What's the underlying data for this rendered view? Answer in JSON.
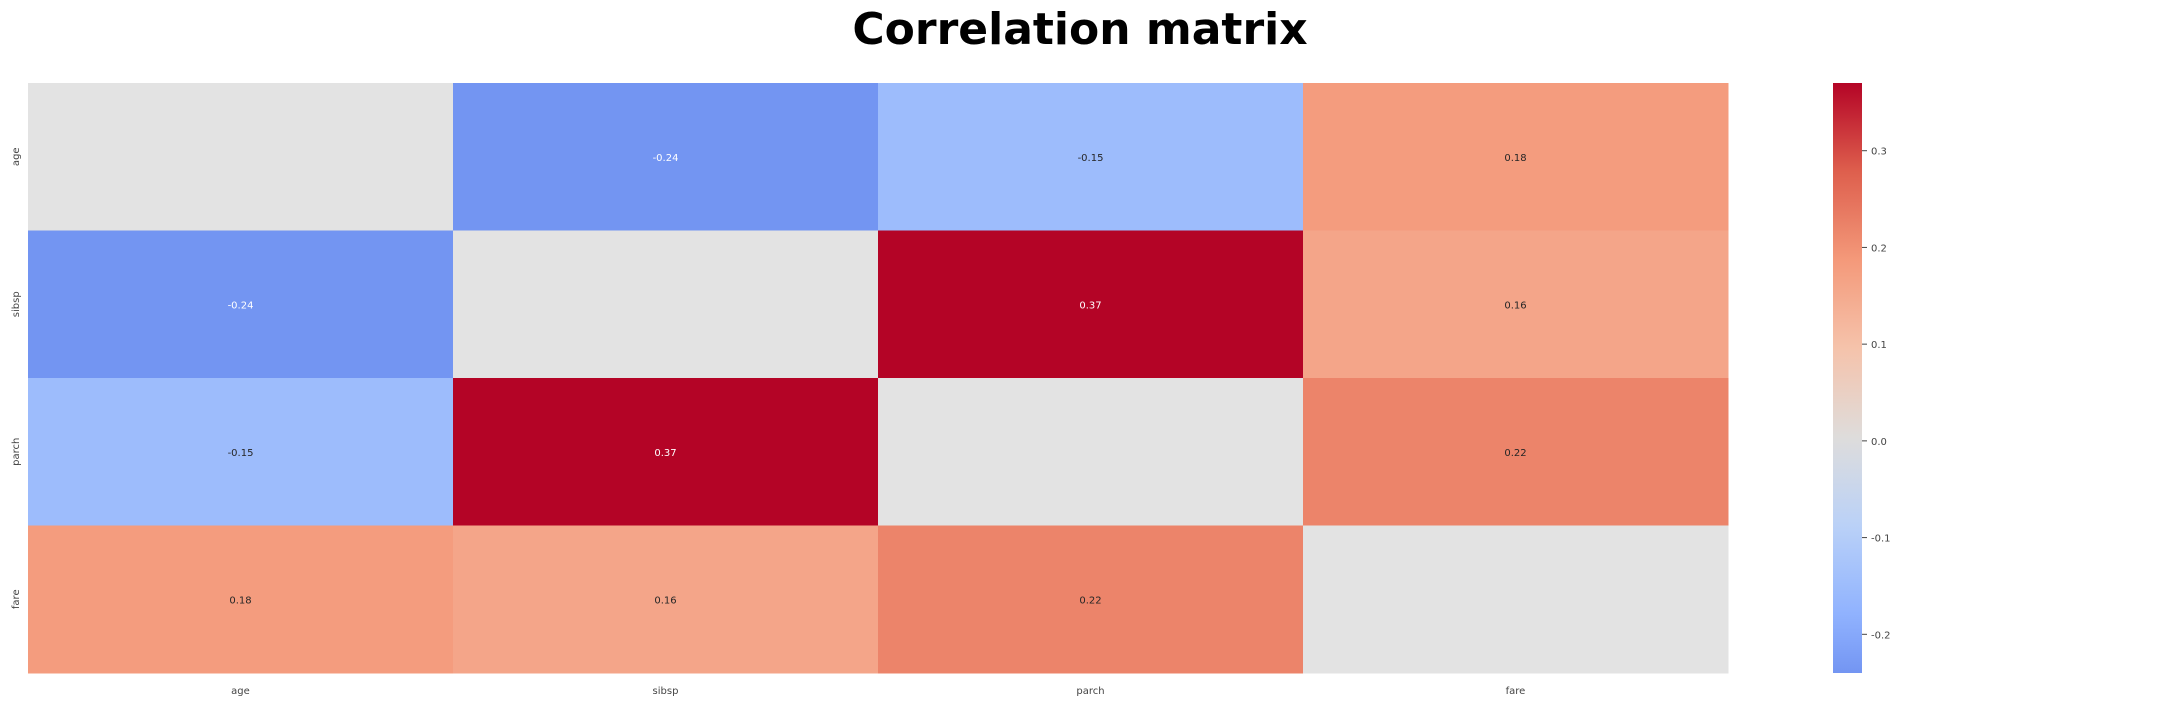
{
  "chart_data": {
    "type": "heatmap",
    "title": "Correlation matrix",
    "x_labels": [
      "age",
      "sibsp",
      "parch",
      "fare"
    ],
    "y_labels": [
      "age",
      "sibsp",
      "parch",
      "fare"
    ],
    "values": [
      [
        null,
        -0.24,
        -0.15,
        0.18
      ],
      [
        -0.24,
        null,
        0.37,
        0.16
      ],
      [
        -0.15,
        0.37,
        null,
        0.22
      ],
      [
        0.18,
        0.16,
        0.22,
        null
      ]
    ],
    "masked_cell_color": "#e3e3e3",
    "colormap": "coolwarm",
    "colorbar": {
      "range": [
        -0.24,
        0.37
      ],
      "ticks": [
        -0.2,
        -0.1,
        0.0,
        0.1,
        0.2,
        0.3
      ],
      "tick_labels": [
        "-0.2",
        "-0.1",
        "0.0",
        "0.1",
        "0.2",
        "0.3"
      ]
    }
  }
}
